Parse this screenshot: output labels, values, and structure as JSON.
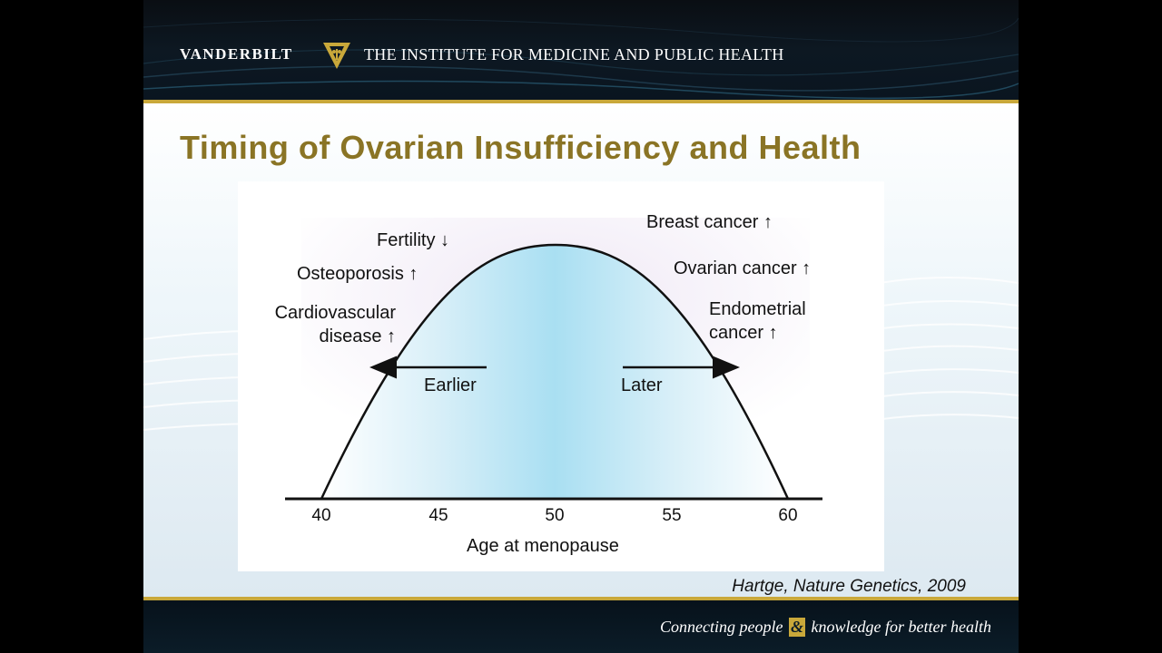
{
  "header": {
    "brand": "VANDERBILT",
    "institute": "THE INSTITUTE FOR MEDICINE AND PUBLIC HEALTH"
  },
  "slide_title": "Timing of Ovarian Insufficiency and Health",
  "figure": {
    "left_labels": {
      "fertility": "Fertility ↓",
      "osteoporosis": "Osteoporosis ↑",
      "cardio_line1": "Cardiovascular",
      "cardio_line2": "disease ↑"
    },
    "right_labels": {
      "breast": "Breast cancer ↑",
      "ovarian": "Ovarian cancer ↑",
      "endo_line1": "Endometrial",
      "endo_line2": "cancer ↑"
    },
    "arrow_left_label": "Earlier",
    "arrow_right_label": "Later",
    "axis_ticks": [
      "40",
      "45",
      "50",
      "55",
      "60"
    ],
    "axis_label": "Age at menopause"
  },
  "citation": "Hartge, Nature Genetics, 2009",
  "footer": {
    "tagline_part1": "Connecting people",
    "tagline_amp": "&",
    "tagline_part2": "knowledge for better health"
  },
  "colors": {
    "gold": "#c9a83a",
    "title": "#8a7425",
    "curve_fill": "#a9dff2"
  }
}
